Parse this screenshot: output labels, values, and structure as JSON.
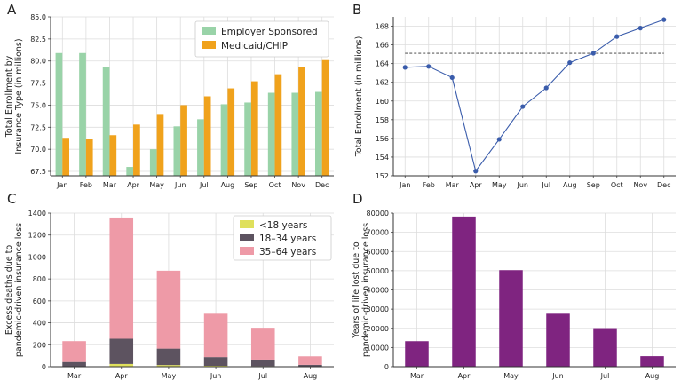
{
  "panels": [
    "A",
    "B",
    "C",
    "D"
  ],
  "chart_data": [
    {
      "panel": "A",
      "type": "bar",
      "categories": [
        "Jan",
        "Feb",
        "Mar",
        "Apr",
        "May",
        "Jun",
        "Jul",
        "Aug",
        "Sep",
        "Oct",
        "Nov",
        "Dec"
      ],
      "series": [
        {
          "name": "Employer Sponsored",
          "color": "#99d3a8",
          "values": [
            80.9,
            80.9,
            79.3,
            68.0,
            70.0,
            72.6,
            73.4,
            75.1,
            75.3,
            76.4,
            76.4,
            76.5
          ]
        },
        {
          "name": "Medicaid/CHIP",
          "color": "#f0a21c",
          "values": [
            71.3,
            71.2,
            71.6,
            72.8,
            74.0,
            75.0,
            76.0,
            76.9,
            77.7,
            78.5,
            79.3,
            80.1
          ]
        }
      ],
      "ylabel": "Total Enrollment by\nInsurance Type (in millions)",
      "ylim": [
        67.0,
        85.0
      ],
      "yticks": [
        "67.5",
        "70.0",
        "72.5",
        "75.0",
        "77.5",
        "80.0",
        "82.5",
        "85.0"
      ],
      "legend": "top-right"
    },
    {
      "panel": "B",
      "type": "line",
      "categories": [
        "Jan",
        "Feb",
        "Mar",
        "Apr",
        "May",
        "Jun",
        "Jul",
        "Aug",
        "Sep",
        "Oct",
        "Nov",
        "Dec"
      ],
      "values": [
        163.6,
        163.7,
        162.5,
        152.5,
        155.9,
        159.4,
        161.4,
        164.1,
        165.1,
        166.9,
        167.8,
        168.7
      ],
      "reference_line": 165.1,
      "color": "#3a5cab",
      "ylabel": "Total Enrollment (in millions)",
      "ylim": [
        152,
        169
      ],
      "yticks": [
        "152",
        "154",
        "156",
        "158",
        "160",
        "162",
        "164",
        "166",
        "168"
      ]
    },
    {
      "panel": "C",
      "type": "bar",
      "stacked": true,
      "categories": [
        "Mar",
        "Apr",
        "May",
        "Jun",
        "Jul",
        "Aug"
      ],
      "series": [
        {
          "name": "<18 years",
          "color": "#dfe05c",
          "values": [
            3,
            25,
            15,
            8,
            5,
            2
          ]
        },
        {
          "name": "18–34 years",
          "color": "#5d5360",
          "values": [
            40,
            230,
            150,
            80,
            60,
            15
          ]
        },
        {
          "name": "35–64 years",
          "color": "#ee9aa7",
          "values": [
            190,
            1105,
            710,
            395,
            290,
            78
          ]
        }
      ],
      "ylabel": "Excess deaths due to\npandemic-driven insurance loss",
      "ylim": [
        0,
        1400
      ],
      "yticks": [
        "0",
        "200",
        "400",
        "600",
        "800",
        "1000",
        "1200",
        "1400"
      ],
      "legend": "top-right"
    },
    {
      "panel": "D",
      "type": "bar",
      "categories": [
        "Mar",
        "Apr",
        "May",
        "Jun",
        "Jul",
        "Aug"
      ],
      "values": [
        13300,
        78200,
        50300,
        27600,
        20100,
        5500
      ],
      "color": "#7f2480",
      "ylabel": "Years of life lost due to\npandemic-driven insurance loss",
      "ylim": [
        0,
        80000
      ],
      "yticks": [
        "0",
        "10000",
        "20000",
        "30000",
        "40000",
        "50000",
        "60000",
        "70000",
        "80000"
      ]
    }
  ]
}
